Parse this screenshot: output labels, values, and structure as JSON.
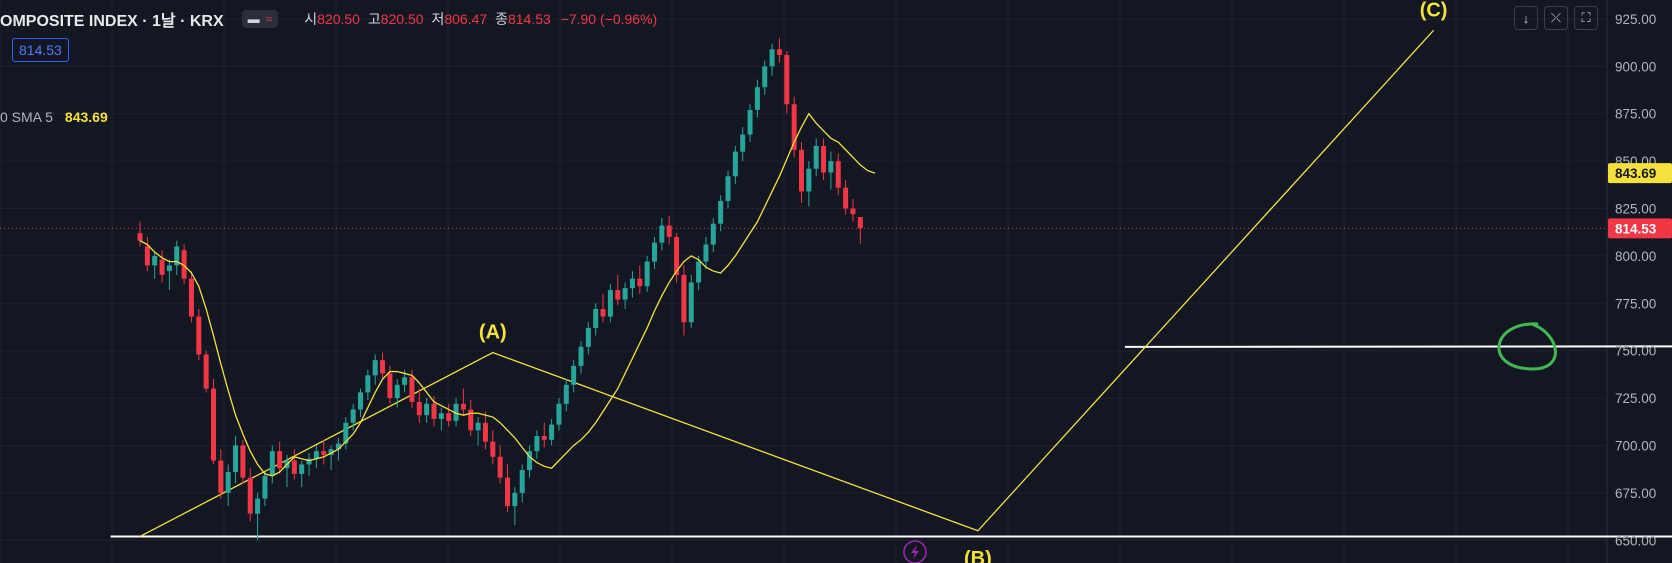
{
  "header": {
    "symbol": "OMPOSITE INDEX · 1날 · KRX",
    "pill_icon_1": "minus-icon",
    "pill_icon_2": "wave-icon",
    "ohlc": [
      {
        "label": "시",
        "value": "820.50"
      },
      {
        "label": "고",
        "value": "820.50"
      },
      {
        "label": "저",
        "value": "806.47"
      },
      {
        "label": "종",
        "value": "814.53"
      }
    ],
    "change": "−7.90 (−0.96%)"
  },
  "price_box": "814.53",
  "sma_label": "0 SMA 5",
  "sma_value": "843.69",
  "toolbar": [
    {
      "name": "arrow-down-icon",
      "glyph": "↓"
    },
    {
      "name": "collapse-icon",
      "glyph": "⤫"
    },
    {
      "name": "fullscreen-icon",
      "glyph": "⛶"
    }
  ],
  "lightning_icon": "lightning-icon",
  "colors": {
    "background": "#131722",
    "up": "#26a69a",
    "down": "#f23645",
    "sma": "#f5e13b",
    "annotation": "#f5e13b",
    "support": "#ffffff",
    "circle": "#3fb950"
  },
  "chart_data": {
    "type": "candlestick",
    "yaxis": {
      "ticks": [
        "925.00",
        "900.00",
        "875.00",
        "850.00",
        "825.00",
        "800.00",
        "775.00",
        "750.00",
        "725.00",
        "700.00",
        "675.00",
        "650.00"
      ],
      "ylim": [
        638,
        935
      ],
      "last_price_label": "814.53",
      "sma_price_label": "843.69"
    },
    "wave_labels": [
      {
        "text": "(A)",
        "value": 749
      },
      {
        "text": "(B)",
        "value": 655
      },
      {
        "text": "(C)",
        "value": 919
      }
    ],
    "wave_path": [
      {
        "i": 0,
        "v": 652
      },
      {
        "i": 48,
        "v": 749
      },
      {
        "i": 114,
        "v": 655
      },
      {
        "i": 176,
        "v": 919
      }
    ],
    "support_lines": [
      {
        "value": 652,
        "from_index": -4,
        "to_index": 226
      },
      {
        "value": 752,
        "from_index": 134,
        "to_index": 278
      }
    ],
    "highlight_circle": {
      "index": 188,
      "value": 752
    },
    "ohlc": [
      {
        "o": 812,
        "h": 818,
        "l": 805,
        "c": 808
      },
      {
        "o": 805,
        "h": 810,
        "l": 792,
        "c": 795
      },
      {
        "o": 795,
        "h": 802,
        "l": 788,
        "c": 800
      },
      {
        "o": 798,
        "h": 803,
        "l": 786,
        "c": 790
      },
      {
        "o": 792,
        "h": 798,
        "l": 782,
        "c": 795
      },
      {
        "o": 795,
        "h": 808,
        "l": 790,
        "c": 805
      },
      {
        "o": 803,
        "h": 806,
        "l": 785,
        "c": 788
      },
      {
        "o": 788,
        "h": 792,
        "l": 765,
        "c": 768
      },
      {
        "o": 768,
        "h": 772,
        "l": 745,
        "c": 748
      },
      {
        "o": 748,
        "h": 750,
        "l": 728,
        "c": 730
      },
      {
        "o": 730,
        "h": 735,
        "l": 690,
        "c": 692
      },
      {
        "o": 692,
        "h": 698,
        "l": 672,
        "c": 675
      },
      {
        "o": 675,
        "h": 690,
        "l": 668,
        "c": 686
      },
      {
        "o": 686,
        "h": 705,
        "l": 680,
        "c": 700
      },
      {
        "o": 700,
        "h": 703,
        "l": 680,
        "c": 683
      },
      {
        "o": 683,
        "h": 688,
        "l": 660,
        "c": 664
      },
      {
        "o": 664,
        "h": 675,
        "l": 650,
        "c": 672
      },
      {
        "o": 672,
        "h": 686,
        "l": 668,
        "c": 684
      },
      {
        "o": 684,
        "h": 700,
        "l": 680,
        "c": 697
      },
      {
        "o": 697,
        "h": 702,
        "l": 685,
        "c": 688
      },
      {
        "o": 688,
        "h": 695,
        "l": 678,
        "c": 692
      },
      {
        "o": 692,
        "h": 698,
        "l": 682,
        "c": 685
      },
      {
        "o": 685,
        "h": 692,
        "l": 678,
        "c": 690
      },
      {
        "o": 690,
        "h": 696,
        "l": 684,
        "c": 693
      },
      {
        "o": 693,
        "h": 700,
        "l": 688,
        "c": 697
      },
      {
        "o": 697,
        "h": 703,
        "l": 690,
        "c": 695
      },
      {
        "o": 695,
        "h": 700,
        "l": 687,
        "c": 698
      },
      {
        "o": 698,
        "h": 704,
        "l": 692,
        "c": 701
      },
      {
        "o": 701,
        "h": 715,
        "l": 698,
        "c": 712
      },
      {
        "o": 712,
        "h": 722,
        "l": 708,
        "c": 719
      },
      {
        "o": 719,
        "h": 730,
        "l": 715,
        "c": 728
      },
      {
        "o": 728,
        "h": 740,
        "l": 724,
        "c": 737
      },
      {
        "o": 737,
        "h": 748,
        "l": 732,
        "c": 745
      },
      {
        "o": 745,
        "h": 749,
        "l": 735,
        "c": 738
      },
      {
        "o": 738,
        "h": 742,
        "l": 722,
        "c": 725
      },
      {
        "o": 725,
        "h": 735,
        "l": 720,
        "c": 732
      },
      {
        "o": 732,
        "h": 740,
        "l": 728,
        "c": 736
      },
      {
        "o": 736,
        "h": 740,
        "l": 720,
        "c": 723
      },
      {
        "o": 723,
        "h": 730,
        "l": 712,
        "c": 716
      },
      {
        "o": 716,
        "h": 725,
        "l": 712,
        "c": 722
      },
      {
        "o": 722,
        "h": 726,
        "l": 710,
        "c": 714
      },
      {
        "o": 714,
        "h": 720,
        "l": 708,
        "c": 717
      },
      {
        "o": 717,
        "h": 722,
        "l": 710,
        "c": 713
      },
      {
        "o": 713,
        "h": 725,
        "l": 710,
        "c": 722
      },
      {
        "o": 722,
        "h": 730,
        "l": 716,
        "c": 719
      },
      {
        "o": 719,
        "h": 724,
        "l": 705,
        "c": 708
      },
      {
        "o": 708,
        "h": 715,
        "l": 700,
        "c": 712
      },
      {
        "o": 712,
        "h": 718,
        "l": 698,
        "c": 702
      },
      {
        "o": 702,
        "h": 708,
        "l": 690,
        "c": 694
      },
      {
        "o": 694,
        "h": 700,
        "l": 680,
        "c": 683
      },
      {
        "o": 683,
        "h": 690,
        "l": 665,
        "c": 668
      },
      {
        "o": 668,
        "h": 678,
        "l": 658,
        "c": 675
      },
      {
        "o": 675,
        "h": 690,
        "l": 670,
        "c": 687
      },
      {
        "o": 687,
        "h": 700,
        "l": 683,
        "c": 697
      },
      {
        "o": 697,
        "h": 708,
        "l": 693,
        "c": 705
      },
      {
        "o": 705,
        "h": 712,
        "l": 699,
        "c": 703
      },
      {
        "o": 703,
        "h": 714,
        "l": 700,
        "c": 711
      },
      {
        "o": 711,
        "h": 725,
        "l": 708,
        "c": 722
      },
      {
        "o": 722,
        "h": 735,
        "l": 718,
        "c": 732
      },
      {
        "o": 732,
        "h": 745,
        "l": 728,
        "c": 742
      },
      {
        "o": 742,
        "h": 755,
        "l": 738,
        "c": 752
      },
      {
        "o": 752,
        "h": 765,
        "l": 748,
        "c": 762
      },
      {
        "o": 762,
        "h": 775,
        "l": 758,
        "c": 772
      },
      {
        "o": 772,
        "h": 780,
        "l": 765,
        "c": 768
      },
      {
        "o": 768,
        "h": 785,
        "l": 765,
        "c": 782
      },
      {
        "o": 782,
        "h": 790,
        "l": 774,
        "c": 777
      },
      {
        "o": 777,
        "h": 786,
        "l": 772,
        "c": 783
      },
      {
        "o": 783,
        "h": 792,
        "l": 778,
        "c": 788
      },
      {
        "o": 788,
        "h": 795,
        "l": 780,
        "c": 784
      },
      {
        "o": 784,
        "h": 800,
        "l": 781,
        "c": 797
      },
      {
        "o": 797,
        "h": 810,
        "l": 793,
        "c": 807
      },
      {
        "o": 807,
        "h": 820,
        "l": 803,
        "c": 816
      },
      {
        "o": 816,
        "h": 821,
        "l": 806,
        "c": 810
      },
      {
        "o": 810,
        "h": 812,
        "l": 786,
        "c": 790
      },
      {
        "o": 790,
        "h": 795,
        "l": 758,
        "c": 765
      },
      {
        "o": 765,
        "h": 790,
        "l": 762,
        "c": 786
      },
      {
        "o": 786,
        "h": 800,
        "l": 782,
        "c": 797
      },
      {
        "o": 797,
        "h": 810,
        "l": 793,
        "c": 806
      },
      {
        "o": 806,
        "h": 820,
        "l": 802,
        "c": 817
      },
      {
        "o": 817,
        "h": 832,
        "l": 813,
        "c": 829
      },
      {
        "o": 829,
        "h": 845,
        "l": 825,
        "c": 842
      },
      {
        "o": 842,
        "h": 858,
        "l": 838,
        "c": 855
      },
      {
        "o": 855,
        "h": 868,
        "l": 850,
        "c": 864
      },
      {
        "o": 864,
        "h": 880,
        "l": 860,
        "c": 877
      },
      {
        "o": 877,
        "h": 893,
        "l": 873,
        "c": 889
      },
      {
        "o": 889,
        "h": 903,
        "l": 885,
        "c": 900
      },
      {
        "o": 900,
        "h": 912,
        "l": 895,
        "c": 909
      },
      {
        "o": 909,
        "h": 915,
        "l": 902,
        "c": 906
      },
      {
        "o": 906,
        "h": 908,
        "l": 875,
        "c": 880
      },
      {
        "o": 880,
        "h": 884,
        "l": 852,
        "c": 856
      },
      {
        "o": 856,
        "h": 860,
        "l": 828,
        "c": 834
      },
      {
        "o": 834,
        "h": 850,
        "l": 826,
        "c": 846
      },
      {
        "o": 846,
        "h": 862,
        "l": 842,
        "c": 858
      },
      {
        "o": 858,
        "h": 862,
        "l": 840,
        "c": 844
      },
      {
        "o": 844,
        "h": 855,
        "l": 835,
        "c": 850
      },
      {
        "o": 850,
        "h": 854,
        "l": 832,
        "c": 836
      },
      {
        "o": 836,
        "h": 840,
        "l": 822,
        "c": 825
      },
      {
        "o": 825,
        "h": 830,
        "l": 818,
        "c": 822
      },
      {
        "o": 820.5,
        "h": 820.5,
        "l": 806.47,
        "c": 814.53
      }
    ],
    "sma_values": [
      808,
      806,
      802,
      799,
      797,
      797,
      795,
      791,
      784,
      772,
      758,
      743,
      729,
      716,
      706,
      697,
      690,
      685,
      684,
      686,
      690,
      694,
      693,
      692,
      693,
      694,
      696,
      698,
      702,
      706,
      712,
      720,
      728,
      735,
      739,
      739,
      738,
      737,
      733,
      728,
      723,
      721,
      719,
      717,
      716,
      717,
      717,
      716,
      715,
      712,
      708,
      704,
      699,
      694,
      691,
      689,
      688,
      692,
      696,
      700,
      703,
      707,
      712,
      718,
      724,
      730,
      738,
      746,
      754,
      762,
      771,
      779,
      786,
      792,
      797,
      800,
      798,
      794,
      792,
      791,
      795,
      800,
      806,
      812,
      818,
      826,
      834,
      842,
      851,
      860,
      868,
      875,
      870,
      866,
      862,
      860,
      856,
      852,
      848,
      845,
      843.69
    ],
    "last_price": 814.53
  }
}
